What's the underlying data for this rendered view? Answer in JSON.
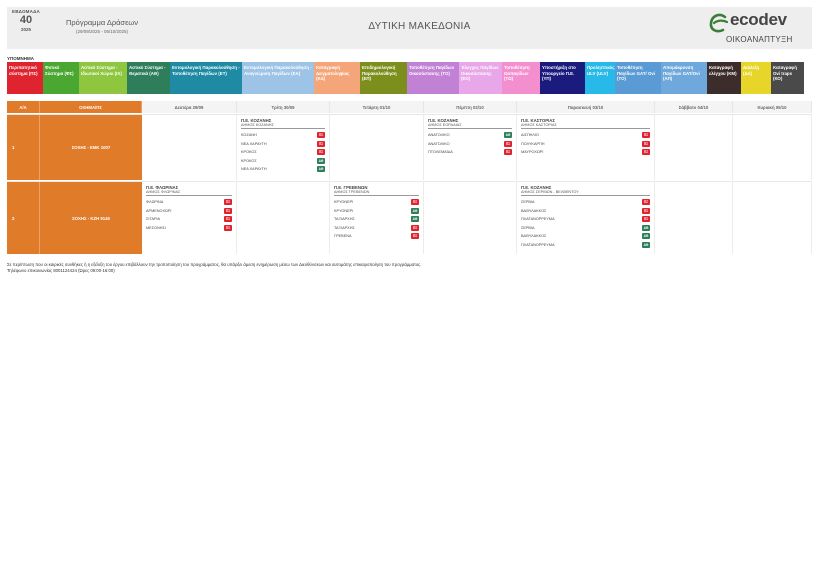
{
  "header": {
    "week_label": "ΕΒΔΟΜΑΔΑ",
    "week_number": "40",
    "year": "2025",
    "program_title": "Πρόγραμμα Δράσεων",
    "date_range": "(29/09/2025 - 05/10/2025)",
    "region": "ΔΥΤΙΚΗ ΜΑΚΕΔΟΝΙΑ",
    "logo_text": "ecodev",
    "logo_sub": "ΟΙΚΟΑΝΑΠΤΥΞΗ",
    "logo_color": "#3b7d3b"
  },
  "legend": {
    "title": "ΥΠΟΜΝΗΜΑ",
    "items": [
      {
        "label": "Περιπατητικό σύστημα (ΠΣ)",
        "color": "#e0242f"
      },
      {
        "label": "Φυτικό Σύστημα (ΦΣ)",
        "color": "#4aa832"
      },
      {
        "label": "Αστικό Σύστημα - Ιδιωτικοί Χώροι (ΙΧ)",
        "color": "#8ec63f"
      },
      {
        "label": "Αστικό Σύστημα - Θεματικά (ΑΘ)",
        "color": "#2e7d5b"
      },
      {
        "label": "Εντομολογική Παρακολούθηση - Τοποθέτηση Παγίδων (ΕΤ)",
        "color": "#1f8aa3"
      },
      {
        "label": "Εντομολογική Παρακολούθηση - Αναγνώριση Παγίδων (ΕΑ)",
        "color": "#9dc3e6"
      },
      {
        "label": "Καταγραφή Δειγματοληψίας (ΚΔ)",
        "color": "#f4a57a"
      },
      {
        "label": "Επιδημιολογική Παρακολούθηση (ΕΠ)",
        "color": "#7c8f1c"
      },
      {
        "label": "Τοποθέτηση Παγίδων Οικοσύστασης (ΤΟ)",
        "color": "#c182d6"
      },
      {
        "label": "Έλεγχος Παγίδων Οικοσύστασης (ΕΟ)",
        "color": "#e7a7e9"
      },
      {
        "label": "Τοποθέτηση Ωοπαγίδων (ΤΩ)",
        "color": "#f38fce"
      },
      {
        "label": "Υποστήριξη στο Υπουργείο Π.Ε. (ΥΠ)",
        "color": "#1b1b7e"
      },
      {
        "label": "Προληπτικός ULV (ULV)",
        "color": "#27b9e8"
      },
      {
        "label": "Τοποθέτηση Παγίδων GAT/ Ovi (ΤΟ)",
        "color": "#5b9bd5"
      },
      {
        "label": "Απομάκρυνση Παγίδων GAT/Ovi (ΑΠ)",
        "color": "#6fa8dc"
      },
      {
        "label": "Καταγραφή ελέγχου (ΚΜ)",
        "color": "#3d2c2c"
      },
      {
        "label": "Διάλεξη (ΔΛ)",
        "color": "#e8d52a"
      },
      {
        "label": "Καταγραφή Ovi traps (ΚΟ)",
        "color": "#4a4a4a"
      }
    ]
  },
  "table": {
    "headers": [
      "Α/Α",
      "ΟΧΗΜΑ/ΠΣ",
      "Δευτέρα 29/09",
      "Τρίτη 30/09",
      "Τετάρτη 01/10",
      "Πέμπτη 02/10",
      "Παρασκευή 03/10",
      "Σάββατο 04/10",
      "Κυριακή 05/10"
    ],
    "rows": [
      {
        "num": "1",
        "vehicle": "ΣΟΧΗΣ - ΕΜΚ 1007",
        "days": [
          null,
          {
            "pe": "Π.Ε. ΚΟΖΑΝΗΣ",
            "dimos": "ΔΗΜΟΣ ΚΟΖΑΝΗΣ",
            "items": [
              {
                "name": "ΚΟΖΑΝΗ",
                "code": "ΠΣ",
                "color": "#e0242f"
              },
              {
                "name": "ΝΕΑ ΧΑΡΑΥΓΗ",
                "code": "ΠΣ",
                "color": "#e0242f"
              },
              {
                "name": "ΚΡΟΚΟΣ",
                "code": "ΠΣ",
                "color": "#e0242f"
              },
              {
                "name": "ΚΡΟΚΟΣ",
                "code": "ΑΘ",
                "color": "#2e7d5b"
              },
              {
                "name": "ΝΕΑ ΧΑΡΑΥΓΗ",
                "code": "ΑΘ",
                "color": "#2e7d5b"
              }
            ]
          },
          null,
          {
            "pe": "Π.Ε. ΚΟΖΑΝΗΣ",
            "dimos": "ΔΗΜΟΣ ΕΟΡΔΑΙΑΣ",
            "items": [
              {
                "name": "ΑΝΑΤΟΛΙΚΟ",
                "code": "ΑΘ",
                "color": "#2e7d5b"
              },
              {
                "name": "ΑΝΑΤΟΛΙΚΟ",
                "code": "ΠΣ",
                "color": "#e0242f"
              },
              {
                "name": "ΠΤΟΛΕΜΑΪΔΑ",
                "code": "ΠΣ",
                "color": "#e0242f"
              }
            ]
          },
          {
            "pe": "Π.Ε. ΚΑΣΤΟΡΙΑΣ",
            "dimos": "ΔΗΜΟΣ ΚΑΣΤΟΡΙΑΣ",
            "items": [
              {
                "name": "ΔΙΣΠΗΛΙΟ",
                "code": "ΠΣ",
                "color": "#e0242f"
              },
              {
                "name": "ΠΟΛΥΚΑΡΠΗ",
                "code": "ΠΣ",
                "color": "#e0242f"
              },
              {
                "name": "ΜΑΥΡΟΧΩΡΙ",
                "code": "ΠΣ",
                "color": "#e0242f"
              }
            ]
          },
          null,
          null
        ]
      },
      {
        "num": "2",
        "vehicle": "ΣΟΧΗΣ - ΚΖΗ 9145",
        "days": [
          {
            "pe": "Π.Ε. ΦΛΩΡΙΝΑΣ",
            "dimos": "ΔΗΜΟΣ ΦΛΩΡΙΝΑΣ",
            "items": [
              {
                "name": "ΦΛΩΡΙΝΑ",
                "code": "ΠΣ",
                "color": "#e0242f"
              },
              {
                "name": "ΑΡΜΕΝΟΧΩΡΙ",
                "code": "ΠΣ",
                "color": "#e0242f"
              },
              {
                "name": "ΣΙΤΑΡΙΑ",
                "code": "ΠΣ",
                "color": "#e0242f"
              },
              {
                "name": "ΜΕΣΟΝΗΣΙ",
                "code": "ΠΣ",
                "color": "#e0242f"
              }
            ]
          },
          null,
          {
            "pe": "Π.Ε. ΓΡΕΒΕΝΩΝ",
            "dimos": "ΔΗΜΟΣ ΓΡΕΒΕΝΩΝ",
            "items": [
              {
                "name": "ΚΡΥΟΝΕΡΙ",
                "code": "ΠΣ",
                "color": "#e0242f"
              },
              {
                "name": "ΚΡΥΟΝΕΡΙ",
                "code": "ΑΘ",
                "color": "#2e7d5b"
              },
              {
                "name": "ΤΑΞΙΑΡΧΗΣ",
                "code": "ΑΘ",
                "color": "#2e7d5b"
              },
              {
                "name": "ΤΑΞΙΑΡΧΗΣ",
                "code": "ΠΣ",
                "color": "#e0242f"
              },
              {
                "name": "ΓΡΕΒΕΝΑ",
                "code": "ΠΣ",
                "color": "#e0242f"
              }
            ]
          },
          null,
          {
            "pe": "Π.Ε. ΚΟΖΑΝΗΣ",
            "dimos": "ΔΗΜΟΣ ΣΕΡΒΙΩΝ - ΒΕΛΒΕΝΤΟΥ",
            "items": [
              {
                "name": "ΣΕΡΒΙΑ",
                "code": "ΠΣ",
                "color": "#e0242f"
              },
              {
                "name": "ΒΑΘΥΛΑΚΚΟΣ",
                "code": "ΠΣ",
                "color": "#e0242f"
              },
              {
                "name": "ΠΛΑΤΑΝΟΡΡΕΥΜΑ",
                "code": "ΠΣ",
                "color": "#e0242f"
              },
              {
                "name": "ΣΕΡΒΙΑ",
                "code": "ΑΘ",
                "color": "#2e7d5b"
              },
              {
                "name": "ΒΑΘΥΛΑΚΚΟΣ",
                "code": "ΑΘ",
                "color": "#2e7d5b"
              },
              {
                "name": "ΠΛΑΤΑΝΟΡΡΕΥΜΑ",
                "code": "ΑΘ",
                "color": "#2e7d5b"
              }
            ]
          },
          null,
          null
        ]
      }
    ]
  },
  "footer": {
    "line1": "Σε περίπτωση που οι καιρικές συνθήκες ή η εξέλιξη του έργου επιβάλλουν την τροποποίηση του προγράμματος, θα υπάρξει άμεση ενημέρωση μέσω των Διευθύνσεων και αυτομάτης επικαιροποίηση του προγράμματος.",
    "line2": "Τηλέφωνο επικοινωνίας 8001124424 (Ώρες 09:00-16:00)"
  }
}
